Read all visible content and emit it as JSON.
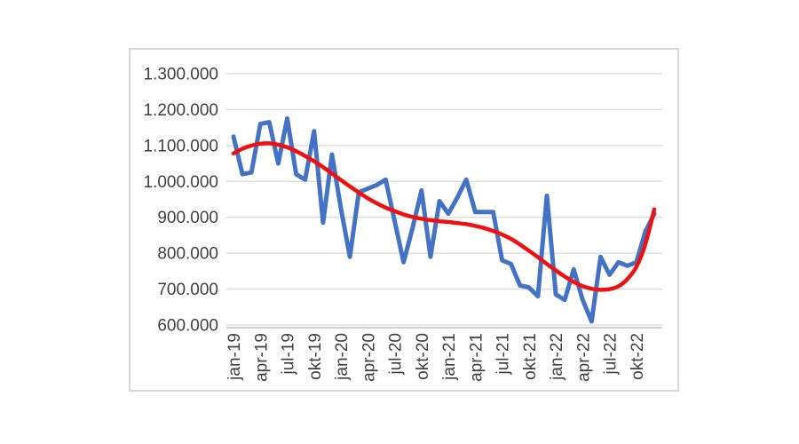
{
  "chart_data": {
    "type": "line",
    "title": "",
    "xlabel": "",
    "ylabel": "",
    "legend": "none",
    "grid": true,
    "n_points": 48,
    "x_range_label": "jan-19 to dec-22 (monthly)",
    "x_tick_interval_months": 3,
    "x_tick_labels": [
      "jan-19",
      "apr-19",
      "jul-19",
      "okt-19",
      "jan-20",
      "apr-20",
      "jul-20",
      "okt-20",
      "jan-21",
      "apr-21",
      "jul-21",
      "okt-21",
      "jan-22",
      "apr-22",
      "jul-22",
      "okt-22"
    ],
    "ylim": [
      600000,
      1300000
    ],
    "ytick_step": 100000,
    "ytick_labels_top_to_bottom": [
      "1.300.000",
      "1.200.000",
      "1.100.000",
      "1.000.000",
      "900.000",
      "800.000",
      "700.000",
      "600.000"
    ],
    "series": [
      {
        "name": "monthly-values",
        "type": "jagged-line",
        "color": "#4472c4",
        "values": [
          1125000,
          1020000,
          1025000,
          1160000,
          1165000,
          1050000,
          1175000,
          1020000,
          1005000,
          1140000,
          885000,
          1075000,
          925000,
          790000,
          970000,
          980000,
          990000,
          1005000,
          890000,
          775000,
          870000,
          975000,
          790000,
          945000,
          910000,
          955000,
          1005000,
          915000,
          915000,
          915000,
          780000,
          770000,
          710000,
          705000,
          680000,
          960000,
          685000,
          670000,
          755000,
          670000,
          610000,
          790000,
          740000,
          775000,
          765000,
          775000,
          860000,
          910000
        ]
      },
      {
        "name": "trendline",
        "type": "smooth-line",
        "color": "#ee1111",
        "values": [
          1078000,
          1091000,
          1100000,
          1105000,
          1106000,
          1102000,
          1095000,
          1084000,
          1071000,
          1056000,
          1040000,
          1022000,
          1004000,
          986000,
          969000,
          953000,
          939000,
          927000,
          917000,
          908000,
          901000,
          896000,
          892000,
          889000,
          887000,
          884000,
          881000,
          876000,
          870000,
          862000,
          852000,
          840000,
          824000,
          807000,
          789000,
          770000,
          752000,
          735000,
          720000,
          708000,
          701000,
          698000,
          700000,
          708000,
          728000,
          762000,
          825000,
          922000
        ]
      }
    ],
    "colors": {
      "background": "#ffffff",
      "frame_border": "#d6d6d6",
      "gridline": "#d9d9d9",
      "axis_line": "#bfbfbf",
      "tick_label": "#404040"
    }
  }
}
